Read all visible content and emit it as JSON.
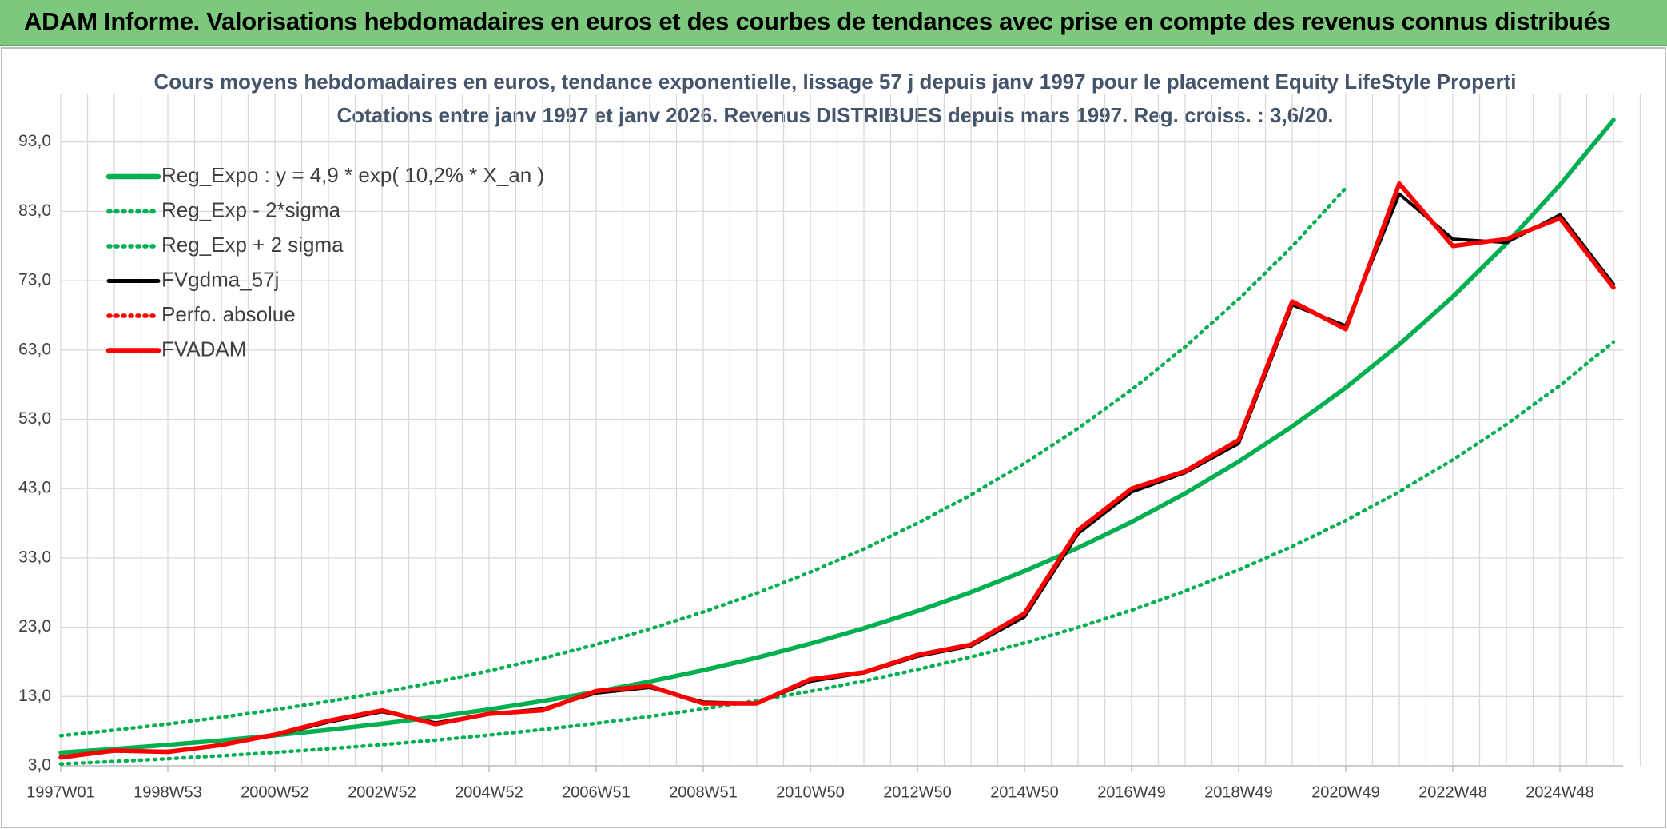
{
  "header": {
    "title": "ADAM Informe. Valorisations hebdomadaires en euros et des courbes de tendances avec prise en compte des revenus connus distribués"
  },
  "chart_data": {
    "type": "line",
    "title": "Cours moyens hebdomadaires en euros, tendance exponentielle, lissage 57 j depuis janv 1997 pour le placement Equity LifeStyle Properti",
    "subtitle": "Cotations entre janv 1997 et janv 2026. Revenus DISTRIBUES depuis mars 1997. Reg. croiss. : 3,6/20.",
    "categories": [
      "1997W01",
      null,
      "1998W53",
      null,
      "2000W52",
      null,
      "2002W52",
      null,
      "2004W52",
      null,
      "2006W51",
      null,
      "2008W51",
      null,
      "2010W50",
      null,
      "2012W50",
      null,
      "2014W50",
      null,
      "2016W49",
      null,
      "2018W49",
      null,
      "2020W49",
      null,
      "2022W48",
      null,
      "2024W48",
      null
    ],
    "ylim": [
      3,
      100
    ],
    "yticks": [
      {
        "value": 3,
        "label": "3,0"
      },
      {
        "value": 13,
        "label": "13,0"
      },
      {
        "value": 23,
        "label": "23,0"
      },
      {
        "value": 33,
        "label": "33,0"
      },
      {
        "value": 43,
        "label": "43,0"
      },
      {
        "value": 53,
        "label": "53,0"
      },
      {
        "value": 63,
        "label": "63,0"
      },
      {
        "value": 73,
        "label": "73,0"
      },
      {
        "value": 83,
        "label": "83,0"
      },
      {
        "value": 93,
        "label": "93,0"
      }
    ],
    "grid": true,
    "legend": "upper left",
    "series": [
      {
        "name": "Reg_Expo : y = 4,9 * exp( 10,2% *  X_an )",
        "color": "#00b050",
        "style": "solid",
        "values": [
          4.9,
          5.43,
          6.02,
          6.67,
          7.39,
          8.19,
          9.07,
          10.05,
          11.14,
          12.34,
          13.68,
          15.16,
          16.8,
          18.61,
          20.63,
          22.85,
          25.33,
          28.06,
          31.1,
          34.46,
          38.18,
          42.31,
          46.89,
          51.96,
          57.57,
          63.8,
          70.69,
          78.34,
          86.8,
          96.19
        ]
      },
      {
        "name": "Reg_Exp - 2*sigma",
        "color": "#00b050",
        "style": "dotted",
        "values": [
          3.27,
          3.62,
          4.02,
          4.45,
          4.93,
          5.46,
          6.05,
          6.7,
          7.43,
          8.23,
          9.12,
          10.11,
          11.21,
          12.41,
          13.76,
          15.24,
          16.9,
          18.72,
          20.74,
          22.98,
          25.47,
          28.22,
          31.28,
          34.66,
          38.4,
          42.55,
          47.15,
          52.25,
          57.9,
          64.16
        ]
      },
      {
        "name": "Reg_Exp + 2 sigma",
        "color": "#00b050",
        "style": "dotted",
        "values": [
          7.35,
          8.15,
          9.03,
          10.0,
          11.09,
          12.29,
          13.61,
          15.08,
          16.71,
          18.51,
          20.52,
          22.74,
          25.2,
          27.92,
          30.95,
          34.28,
          38.0,
          42.09,
          46.65,
          51.69,
          57.27,
          63.47,
          70.34,
          77.94,
          86.36,
          null,
          null,
          null,
          null,
          null
        ]
      },
      {
        "name": "FVgdma_57j",
        "color": "#000000",
        "style": "solid",
        "values": [
          4.3,
          5.1,
          5.1,
          6.0,
          7.4,
          9.3,
          10.8,
          9.2,
          10.5,
          11.2,
          13.5,
          14.3,
          12.2,
          12.0,
          15.2,
          16.4,
          18.8,
          20.3,
          24.5,
          36.5,
          42.5,
          45.3,
          49.5,
          69.5,
          66.5,
          85.5,
          79.0,
          78.5,
          82.5,
          72.5
        ]
      },
      {
        "name": "Perfo. absolue",
        "color": "#ff0000",
        "style": "dotted",
        "values": [
          null,
          null,
          null,
          null,
          null,
          null,
          null,
          null,
          null,
          null,
          null,
          null,
          null,
          null,
          null,
          null,
          null,
          null,
          null,
          null,
          null,
          null,
          null,
          null,
          null,
          null,
          null,
          null,
          null,
          null
        ]
      },
      {
        "name": "FVADAM",
        "color": "#ff0000",
        "style": "solid",
        "values": [
          4.2,
          5.2,
          5.0,
          6.0,
          7.5,
          9.5,
          11.0,
          9.0,
          10.5,
          11.0,
          13.8,
          14.5,
          12.0,
          12.0,
          15.5,
          16.5,
          19.0,
          20.5,
          25.0,
          37.0,
          43.0,
          45.5,
          50.0,
          70.0,
          66.0,
          87.0,
          78.0,
          79.0,
          82.0,
          72.0
        ]
      }
    ]
  }
}
